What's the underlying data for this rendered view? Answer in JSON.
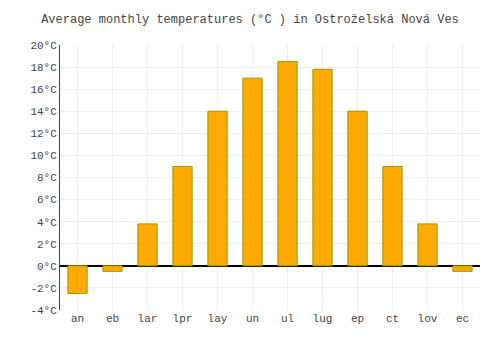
{
  "chart_data": {
    "type": "bar",
    "title": "Average monthly temperatures (°C ) in Ostroželská Nová Ves",
    "categories": [
      "an",
      "eb",
      "lar",
      "lpr",
      "lay",
      "un",
      "ul",
      "lug",
      "ep",
      "ct",
      "lov",
      "ec"
    ],
    "values": [
      -2.5,
      -0.5,
      3.8,
      9.0,
      14.0,
      17.0,
      18.5,
      17.8,
      14.0,
      9.0,
      3.8,
      -0.5
    ],
    "color": "#FFAA00",
    "ylim": [
      -4,
      20
    ],
    "yticks": [
      {
        "value": -4,
        "label": "-4°C"
      },
      {
        "value": -2,
        "label": "-2°C"
      },
      {
        "value": 0,
        "label": "0°C"
      },
      {
        "value": 2,
        "label": "2°C"
      },
      {
        "value": 4,
        "label": "4°C"
      },
      {
        "value": 6,
        "label": "6°C"
      },
      {
        "value": 8,
        "label": "8°C"
      },
      {
        "value": 10,
        "label": "10°C"
      },
      {
        "value": 12,
        "label": "12°C"
      },
      {
        "value": 14,
        "label": "14°C"
      },
      {
        "value": 16,
        "label": "16°C"
      },
      {
        "value": 18,
        "label": "18°C"
      },
      {
        "value": 20,
        "label": "20°C"
      }
    ],
    "grid": true
  }
}
